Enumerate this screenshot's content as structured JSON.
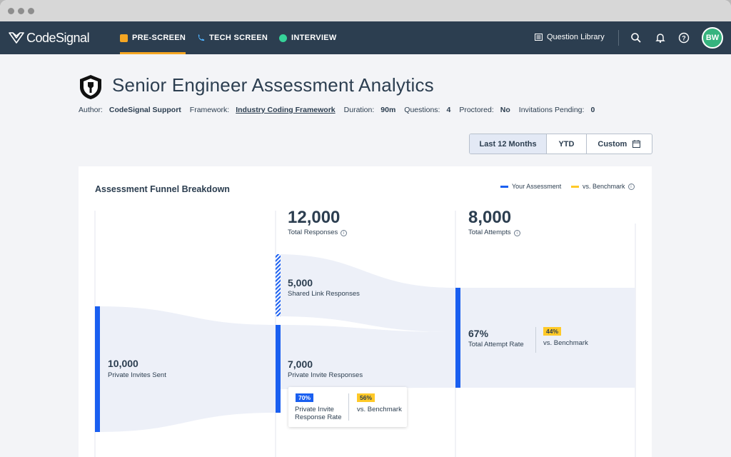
{
  "nav": {
    "logo": "CodeSignal",
    "tabs": [
      {
        "label": "PRE-SCREEN",
        "icon": "pre-screen-icon",
        "color": "#f5a623",
        "active": true
      },
      {
        "label": "TECH SCREEN",
        "icon": "tech-screen-icon",
        "color": "#4fb3ff",
        "active": false
      },
      {
        "label": "INTERVIEW",
        "icon": "interview-icon",
        "color": "#36d399",
        "active": false
      }
    ],
    "question_library": "Question Library",
    "avatar_initials": "BW"
  },
  "page": {
    "title": "Senior Engineer Assessment Analytics",
    "meta": {
      "author_label": "Author:",
      "author": "CodeSignal Support",
      "framework_label": "Framework:",
      "framework": "Industry Coding Framework",
      "duration_label": "Duration:",
      "duration": "90m",
      "questions_label": "Questions:",
      "questions": "4",
      "proctored_label": "Proctored:",
      "proctored": "No",
      "pending_label": "Invitations Pending:",
      "pending": "0"
    }
  },
  "range": {
    "options": [
      "Last 12 Months",
      "YTD",
      "Custom"
    ],
    "selected": "Last 12 Months"
  },
  "funnel": {
    "title": "Assessment Funnel Breakdown",
    "legend": {
      "yours": "Your Assessment",
      "benchmark": "vs. Benchmark"
    },
    "colors": {
      "primary": "#1a5ff0",
      "benchmark": "#ffc928",
      "flow": "#edf0f8"
    },
    "private_invites": {
      "value": "10,000",
      "label": "Private Invites Sent"
    },
    "total_responses": {
      "value": "12,000",
      "label": "Total Responses"
    },
    "shared_link": {
      "value": "5,000",
      "label": "Shared Link Responses"
    },
    "private_responses": {
      "value": "7,000",
      "label": "Private Invite Responses"
    },
    "response_rate": {
      "value": "70%",
      "label_line1": "Private Invite",
      "label_line2": "Response Rate",
      "benchmark_value": "56%",
      "benchmark_label": "vs. Benchmark"
    },
    "total_attempts": {
      "value": "8,000",
      "label": "Total Attempts"
    },
    "attempt_rate": {
      "value": "67%",
      "label": "Total Attempt Rate",
      "benchmark_value": "44%",
      "benchmark_label": "vs. Benchmark"
    }
  }
}
